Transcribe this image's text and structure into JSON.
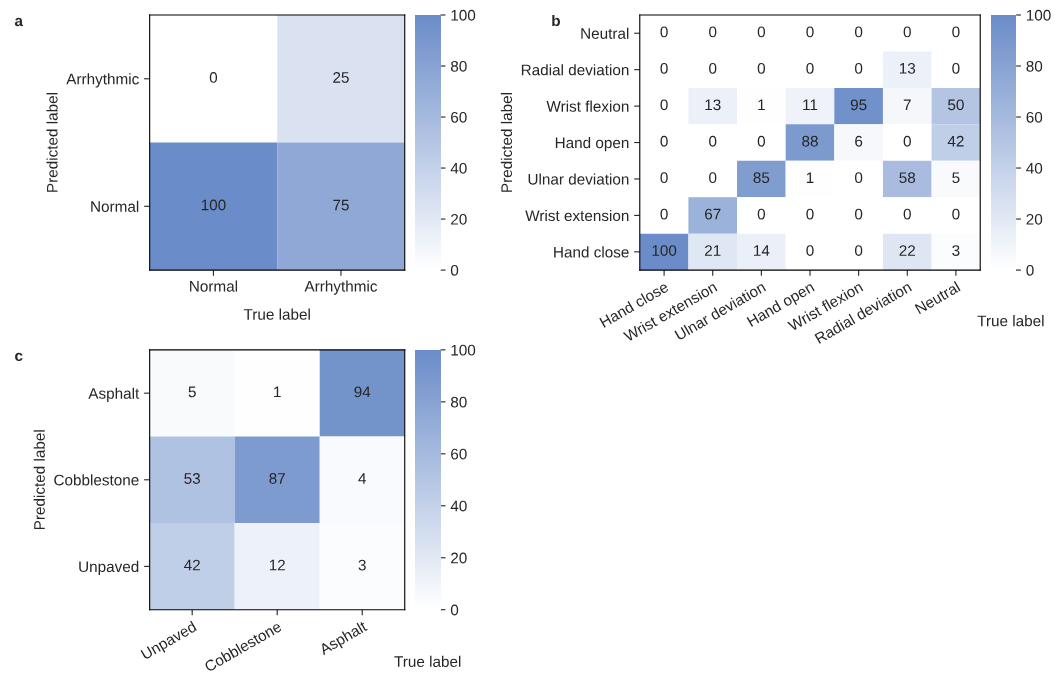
{
  "chart_data": [
    {
      "type": "heatmap",
      "annotations": [
        "a"
      ],
      "xlabel": "True label",
      "ylabel": "Predicted label",
      "categories": [
        "Normal",
        "Arrhythmic"
      ],
      "y_categories": [
        "Arrhythmic",
        "Normal"
      ],
      "cells": [
        [
          0,
          25
        ],
        [
          100,
          75
        ]
      ],
      "clim": [
        0,
        100
      ],
      "cticks": [
        0,
        20,
        40,
        60,
        80,
        100
      ],
      "data_labels": true
    },
    {
      "type": "heatmap",
      "annotations": [
        "b"
      ],
      "xlabel": "True label",
      "ylabel": "Predicted label",
      "categories": [
        "Hand close",
        "Wrist extension",
        "Ulnar deviation",
        "Hand open",
        "Wrist flexion",
        "Radial deviation",
        "Neutral"
      ],
      "y_categories": [
        "Neutral",
        "Radial deviation",
        "Wrist flexion",
        "Hand open",
        "Ulnar deviation",
        "Wrist extension",
        "Hand close"
      ],
      "cells": [
        [
          0,
          0,
          0,
          0,
          0,
          0,
          0
        ],
        [
          0,
          0,
          0,
          0,
          0,
          13,
          0
        ],
        [
          0,
          13,
          1,
          11,
          95,
          7,
          50
        ],
        [
          0,
          0,
          0,
          88,
          6,
          0,
          42
        ],
        [
          0,
          0,
          85,
          1,
          0,
          58,
          5
        ],
        [
          0,
          67,
          0,
          0,
          0,
          0,
          0
        ],
        [
          100,
          21,
          14,
          0,
          0,
          22,
          3
        ]
      ],
      "clim": [
        0,
        100
      ],
      "cticks": [
        0,
        20,
        40,
        60,
        80,
        100
      ],
      "data_labels": true
    },
    {
      "type": "heatmap",
      "annotations": [
        "c"
      ],
      "xlabel": "True label",
      "ylabel": "Predicted label",
      "categories": [
        "Unpaved",
        "Cobblestone",
        "Asphalt"
      ],
      "y_categories": [
        "Asphalt",
        "Cobblestone",
        "Unpaved"
      ],
      "cells": [
        [
          5,
          1,
          94
        ],
        [
          53,
          87,
          4
        ],
        [
          42,
          12,
          3
        ]
      ],
      "clim": [
        0,
        100
      ],
      "cticks": [
        0,
        20,
        40,
        60,
        80,
        100
      ],
      "data_labels": true
    }
  ]
}
